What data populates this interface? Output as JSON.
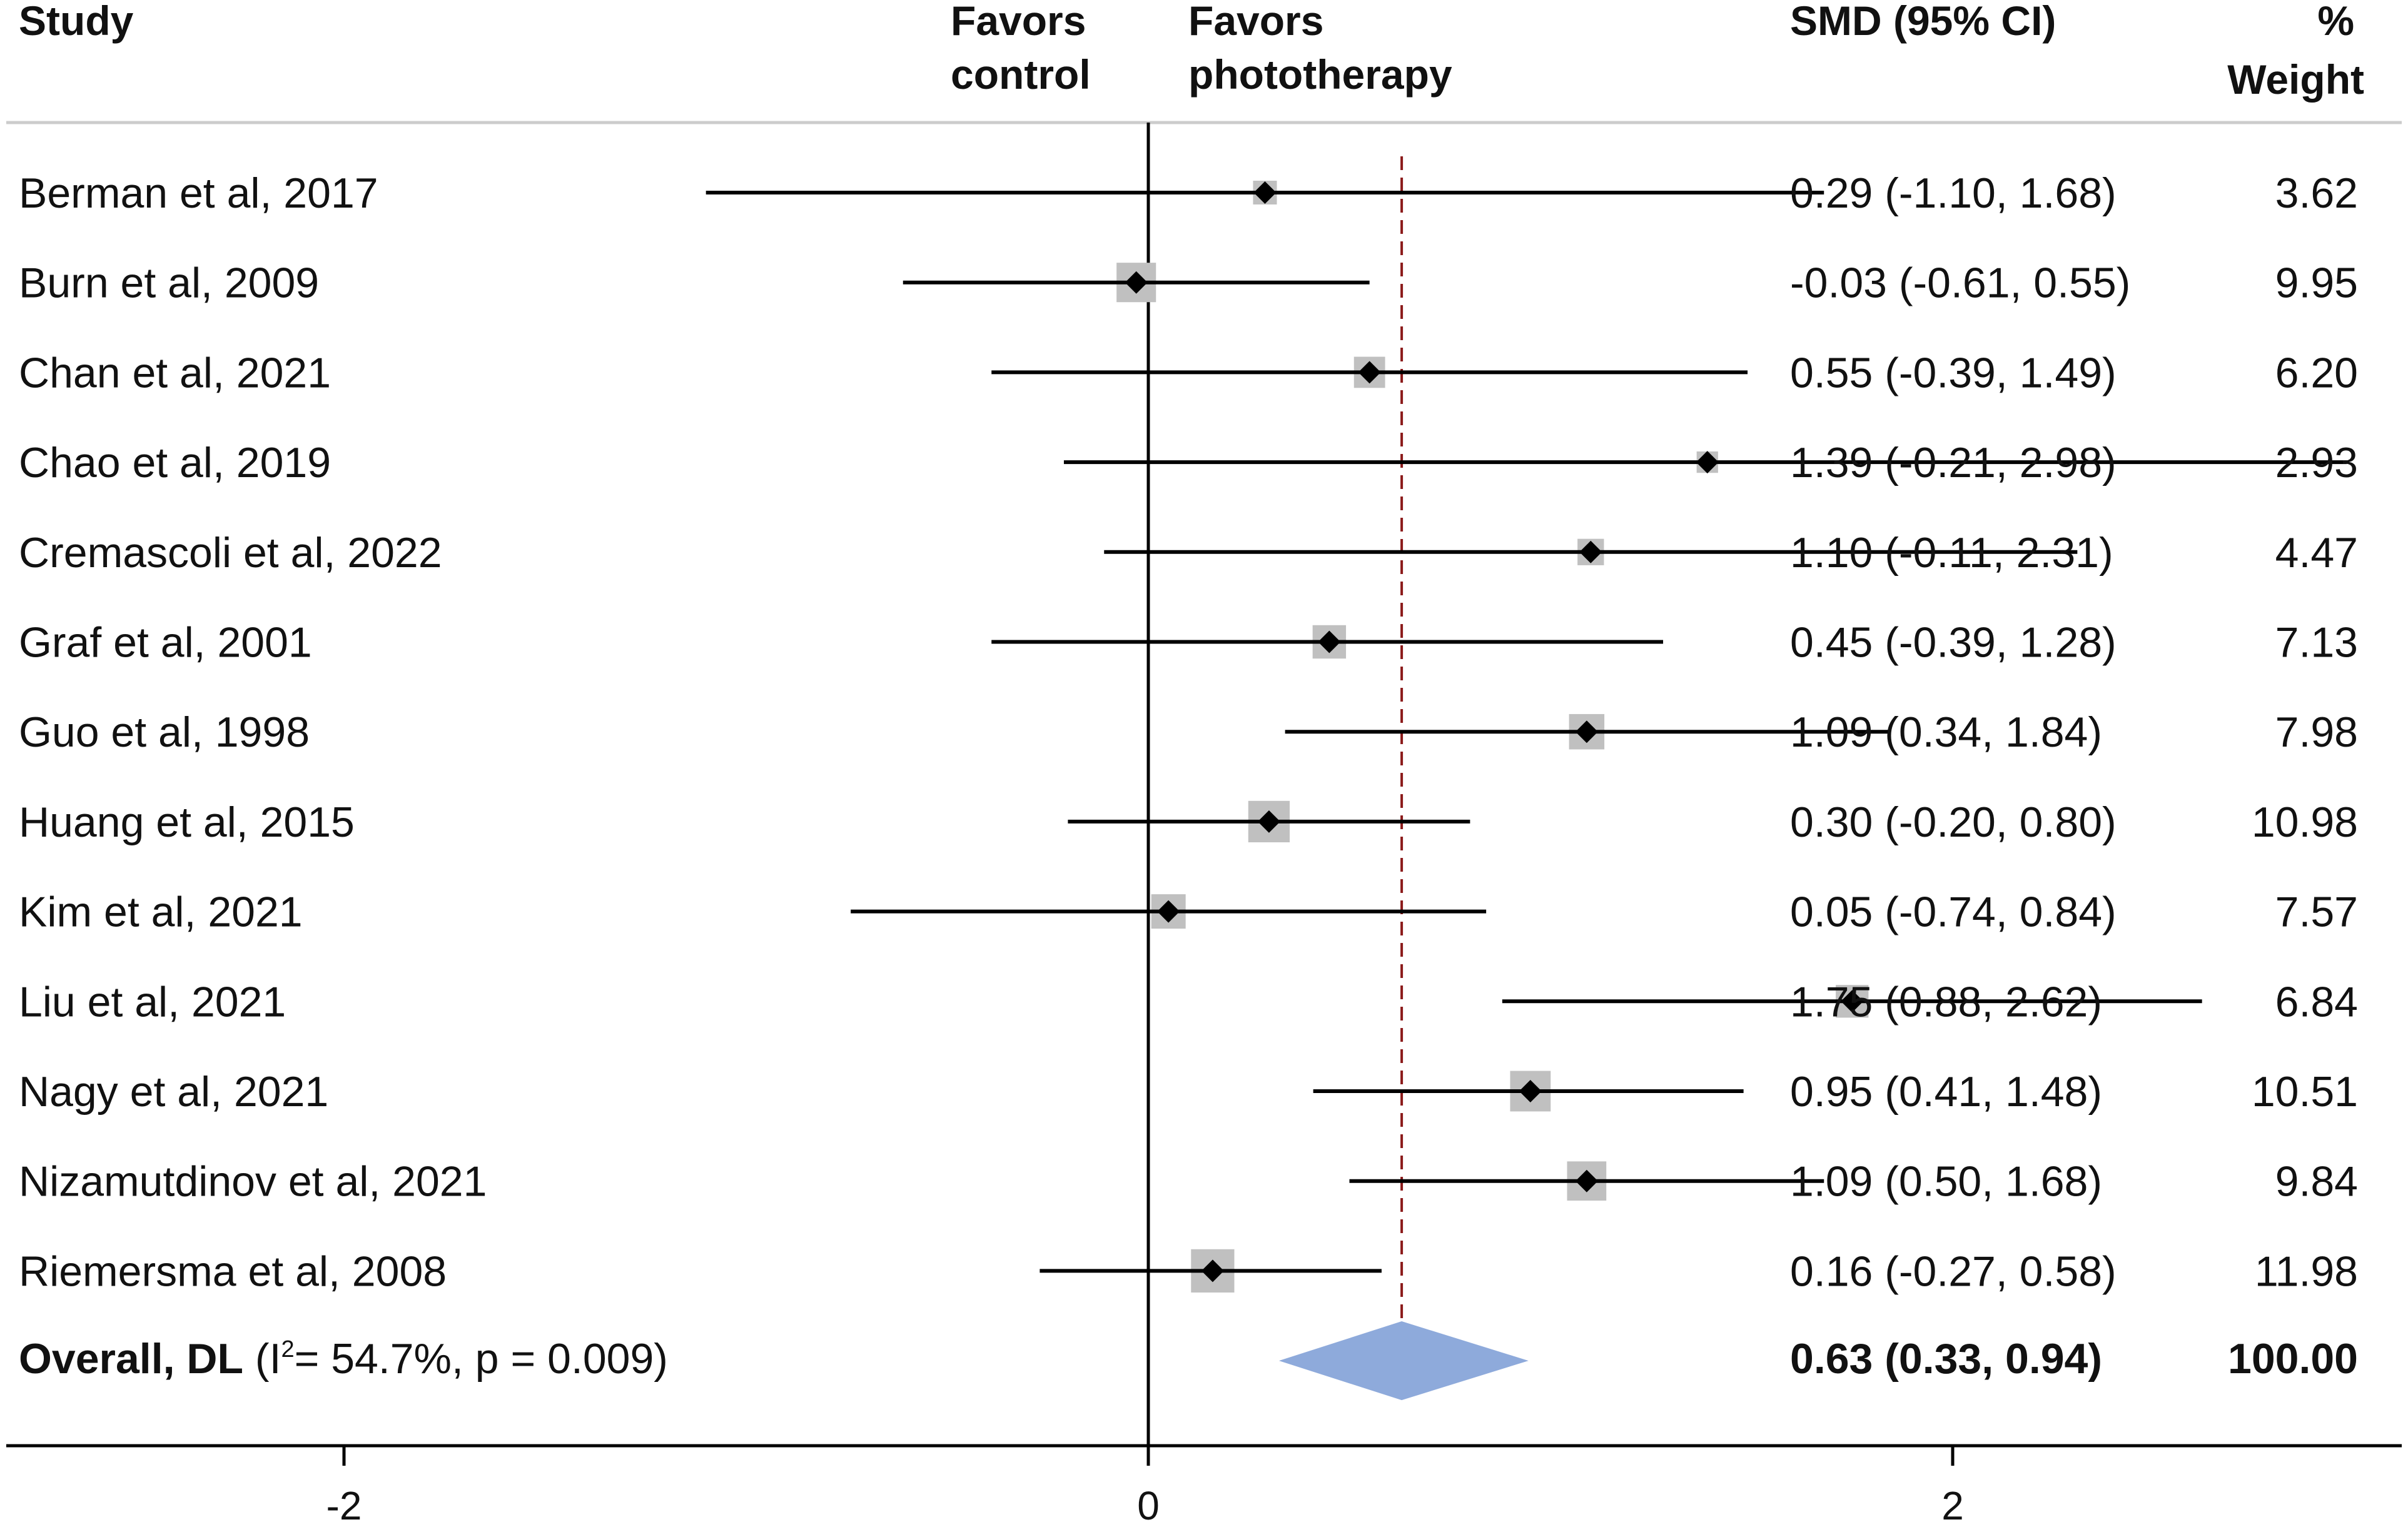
{
  "chart_data": {
    "type": "forest",
    "headers": {
      "study": "Study",
      "favors_left_1": "Favors",
      "favors_left_2": "control",
      "favors_right_1": "Favors",
      "favors_right_2": "phototherapy",
      "effect": "SMD (95% CI)",
      "weight_1": "%",
      "weight_2": "Weight"
    },
    "x_range": [
      -2.9,
      3.1
    ],
    "x_ticks": [
      -2,
      0,
      2
    ],
    "x_tick_labels": [
      "-2",
      "0",
      "2"
    ],
    "null_line": 0,
    "pooled_line": 0.63,
    "colors": {
      "square": "#c0c0c0",
      "line": "#000000",
      "pooled_line": "#8b1a1a",
      "diamond": "#8eaadb",
      "axis": "#000000",
      "header_rule": "#cccccc"
    },
    "studies": [
      {
        "name": "Berman et al, 2017",
        "smd": 0.29,
        "lo": -1.1,
        "hi": 1.68,
        "ci_text": "0.29 (-1.10, 1.68)",
        "weight": 3.62,
        "weight_text": "3.62"
      },
      {
        "name": "Burn et al, 2009",
        "smd": -0.03,
        "lo": -0.61,
        "hi": 0.55,
        "ci_text": "-0.03 (-0.61, 0.55)",
        "weight": 9.95,
        "weight_text": "9.95"
      },
      {
        "name": "Chan et al, 2021",
        "smd": 0.55,
        "lo": -0.39,
        "hi": 1.49,
        "ci_text": "0.55 (-0.39, 1.49)",
        "weight": 6.2,
        "weight_text": "6.20"
      },
      {
        "name": "Chao et al, 2019",
        "smd": 1.39,
        "lo": -0.21,
        "hi": 2.98,
        "ci_text": "1.39 (-0.21, 2.98)",
        "weight": 2.93,
        "weight_text": "2.93"
      },
      {
        "name": "Cremascoli et al, 2022",
        "smd": 1.1,
        "lo": -0.11,
        "hi": 2.31,
        "ci_text": "1.10 (-0.11, 2.31)",
        "weight": 4.47,
        "weight_text": "4.47"
      },
      {
        "name": "Graf et al, 2001",
        "smd": 0.45,
        "lo": -0.39,
        "hi": 1.28,
        "ci_text": "0.45 (-0.39, 1.28)",
        "weight": 7.13,
        "weight_text": "7.13"
      },
      {
        "name": "Guo et al, 1998",
        "smd": 1.09,
        "lo": 0.34,
        "hi": 1.84,
        "ci_text": "1.09 (0.34, 1.84)",
        "weight": 7.98,
        "weight_text": "7.98"
      },
      {
        "name": "Huang et al, 2015",
        "smd": 0.3,
        "lo": -0.2,
        "hi": 0.8,
        "ci_text": "0.30 (-0.20, 0.80)",
        "weight": 10.98,
        "weight_text": "10.98"
      },
      {
        "name": "Kim et al, 2021",
        "smd": 0.05,
        "lo": -0.74,
        "hi": 0.84,
        "ci_text": "0.05 (-0.74, 0.84)",
        "weight": 7.57,
        "weight_text": "7.57"
      },
      {
        "name": "Liu et al, 2021",
        "smd": 1.75,
        "lo": 0.88,
        "hi": 2.62,
        "ci_text": "1.75 (0.88, 2.62)",
        "weight": 6.84,
        "weight_text": "6.84"
      },
      {
        "name": "Nagy et al, 2021",
        "smd": 0.95,
        "lo": 0.41,
        "hi": 1.48,
        "ci_text": "0.95 (0.41, 1.48)",
        "weight": 10.51,
        "weight_text": "10.51"
      },
      {
        "name": "Nizamutdinov et al, 2021",
        "smd": 1.09,
        "lo": 0.5,
        "hi": 1.68,
        "ci_text": "1.09 (0.50, 1.68)",
        "weight": 9.84,
        "weight_text": "9.84"
      },
      {
        "name": "Riemersma et al, 2008",
        "smd": 0.16,
        "lo": -0.27,
        "hi": 0.58,
        "ci_text": "0.16 (-0.27, 0.58)",
        "weight": 11.98,
        "weight_text": "11.98"
      }
    ],
    "overall": {
      "label_bold": "Overall, DL",
      "label_open": " (I",
      "label_sup": "2",
      "label_rest": "= 54.7%, p = 0.009)",
      "smd": 0.63,
      "lo": 0.33,
      "hi": 0.94,
      "ci_text": "0.63 (0.33, 0.94)",
      "weight_text": "100.00"
    }
  }
}
